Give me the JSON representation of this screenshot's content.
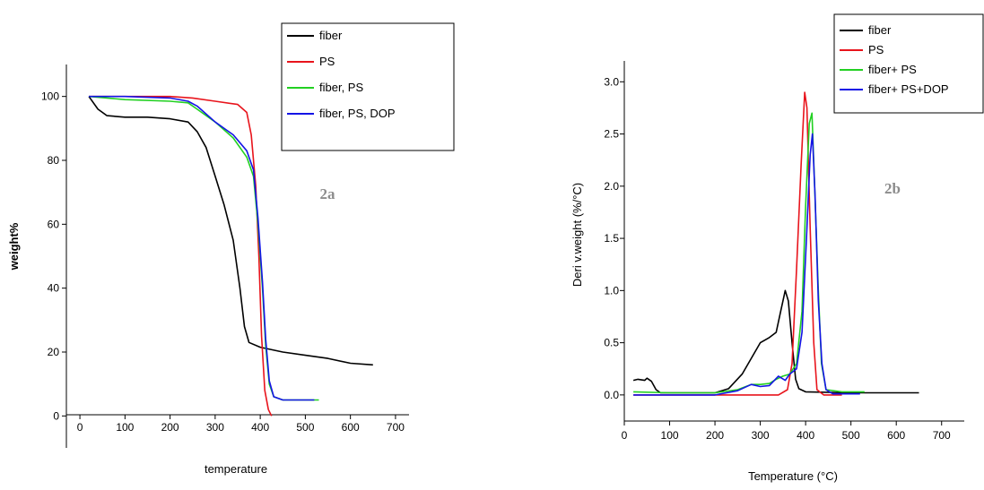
{
  "chart_data": [
    {
      "type": "line",
      "panel_label": "2a",
      "xlabel": "temperature",
      "ylabel": "weight%",
      "xlim": [
        -30,
        730
      ],
      "ylim": [
        -10,
        110
      ],
      "x_ticks": [
        0,
        100,
        200,
        300,
        400,
        500,
        600,
        700
      ],
      "y_ticks": [
        0,
        20,
        40,
        60,
        80,
        100
      ],
      "legend_position": "top-right",
      "series": [
        {
          "name": "fiber",
          "color": "#000000",
          "points": [
            [
              20,
              100
            ],
            [
              40,
              96
            ],
            [
              60,
              94
            ],
            [
              100,
              93.5
            ],
            [
              150,
              93.5
            ],
            [
              200,
              93
            ],
            [
              240,
              92
            ],
            [
              260,
              89
            ],
            [
              280,
              84
            ],
            [
              300,
              75
            ],
            [
              320,
              66
            ],
            [
              340,
              55
            ],
            [
              355,
              40
            ],
            [
              365,
              28
            ],
            [
              375,
              23
            ],
            [
              400,
              21.5
            ],
            [
              450,
              20
            ],
            [
              500,
              19
            ],
            [
              550,
              18
            ],
            [
              600,
              16.5
            ],
            [
              650,
              16
            ]
          ]
        },
        {
          "name": "PS",
          "color": "#e8141c",
          "points": [
            [
              20,
              100
            ],
            [
              100,
              100
            ],
            [
              200,
              100
            ],
            [
              250,
              99.5
            ],
            [
              300,
              98.5
            ],
            [
              350,
              97.5
            ],
            [
              370,
              95
            ],
            [
              380,
              88
            ],
            [
              390,
              72
            ],
            [
              397,
              50
            ],
            [
              403,
              25
            ],
            [
              410,
              8
            ],
            [
              418,
              2
            ],
            [
              425,
              0
            ]
          ]
        },
        {
          "name": "fiber, PS",
          "color": "#22d022",
          "points": [
            [
              20,
              100
            ],
            [
              100,
              99
            ],
            [
              200,
              98.5
            ],
            [
              240,
              98
            ],
            [
              260,
              96
            ],
            [
              300,
              92
            ],
            [
              340,
              87
            ],
            [
              370,
              81
            ],
            [
              385,
              75
            ],
            [
              395,
              60
            ],
            [
              405,
              40
            ],
            [
              412,
              22
            ],
            [
              420,
              10
            ],
            [
              430,
              6
            ],
            [
              450,
              5
            ],
            [
              500,
              5
            ],
            [
              530,
              5
            ]
          ]
        },
        {
          "name": "fiber,  PS, DOP",
          "color": "#1414e6",
          "points": [
            [
              20,
              100
            ],
            [
              100,
              100
            ],
            [
              200,
              99.5
            ],
            [
              240,
              98.5
            ],
            [
              260,
              97
            ],
            [
              300,
              92
            ],
            [
              340,
              88
            ],
            [
              370,
              83
            ],
            [
              385,
              77
            ],
            [
              395,
              62
            ],
            [
              405,
              42
            ],
            [
              412,
              24
            ],
            [
              420,
              11
            ],
            [
              430,
              6
            ],
            [
              450,
              5
            ],
            [
              500,
              5
            ],
            [
              520,
              5
            ]
          ]
        }
      ]
    },
    {
      "type": "line",
      "panel_label": "2b",
      "xlabel": "Temperature (°C)",
      "ylabel": "Deri v.weight (%/°C)",
      "xlim": [
        0,
        750
      ],
      "ylim": [
        -0.25,
        3.2
      ],
      "x_ticks": [
        0,
        100,
        200,
        300,
        400,
        500,
        600,
        700
      ],
      "y_ticks": [
        0.0,
        0.5,
        1.0,
        1.5,
        2.0,
        2.5,
        3.0
      ],
      "y_tick_labels": [
        "0.0",
        "0.5",
        "1.0",
        "1.5",
        "2.0",
        "2.5",
        "3.0"
      ],
      "legend_position": "top-right",
      "series": [
        {
          "name": "fiber",
          "color": "#000000",
          "points": [
            [
              20,
              0.14
            ],
            [
              30,
              0.15
            ],
            [
              45,
              0.14
            ],
            [
              50,
              0.16
            ],
            [
              60,
              0.13
            ],
            [
              70,
              0.05
            ],
            [
              80,
              0.02
            ],
            [
              100,
              0.02
            ],
            [
              200,
              0.02
            ],
            [
              230,
              0.06
            ],
            [
              260,
              0.2
            ],
            [
              280,
              0.35
            ],
            [
              300,
              0.5
            ],
            [
              320,
              0.55
            ],
            [
              335,
              0.6
            ],
            [
              345,
              0.8
            ],
            [
              355,
              1.0
            ],
            [
              362,
              0.9
            ],
            [
              370,
              0.5
            ],
            [
              378,
              0.15
            ],
            [
              385,
              0.06
            ],
            [
              400,
              0.03
            ],
            [
              500,
              0.02
            ],
            [
              600,
              0.02
            ],
            [
              650,
              0.02
            ]
          ]
        },
        {
          "name": "PS",
          "color": "#e8141c",
          "points": [
            [
              20,
              0.0
            ],
            [
              100,
              0.0
            ],
            [
              200,
              0.0
            ],
            [
              300,
              0.0
            ],
            [
              340,
              0.0
            ],
            [
              360,
              0.05
            ],
            [
              370,
              0.3
            ],
            [
              380,
              1.2
            ],
            [
              390,
              2.2
            ],
            [
              398,
              2.9
            ],
            [
              403,
              2.75
            ],
            [
              410,
              1.6
            ],
            [
              418,
              0.5
            ],
            [
              425,
              0.05
            ],
            [
              440,
              0.0
            ],
            [
              480,
              0.0
            ]
          ]
        },
        {
          "name": "fiber+ PS",
          "color": "#22d022",
          "points": [
            [
              20,
              0.03
            ],
            [
              100,
              0.02
            ],
            [
              200,
              0.02
            ],
            [
              250,
              0.05
            ],
            [
              280,
              0.1
            ],
            [
              300,
              0.1
            ],
            [
              320,
              0.11
            ],
            [
              335,
              0.15
            ],
            [
              350,
              0.18
            ],
            [
              365,
              0.2
            ],
            [
              380,
              0.3
            ],
            [
              392,
              0.8
            ],
            [
              400,
              1.8
            ],
            [
              408,
              2.6
            ],
            [
              414,
              2.7
            ],
            [
              420,
              2.0
            ],
            [
              428,
              1.0
            ],
            [
              435,
              0.3
            ],
            [
              445,
              0.05
            ],
            [
              480,
              0.03
            ],
            [
              530,
              0.03
            ]
          ]
        },
        {
          "name": "fiber+ PS+DOP",
          "color": "#1414e6",
          "points": [
            [
              20,
              0.0
            ],
            [
              100,
              0.0
            ],
            [
              200,
              0.0
            ],
            [
              250,
              0.04
            ],
            [
              280,
              0.1
            ],
            [
              300,
              0.08
            ],
            [
              320,
              0.09
            ],
            [
              340,
              0.18
            ],
            [
              355,
              0.14
            ],
            [
              365,
              0.2
            ],
            [
              380,
              0.25
            ],
            [
              392,
              0.6
            ],
            [
              402,
              1.5
            ],
            [
              410,
              2.3
            ],
            [
              415,
              2.5
            ],
            [
              421,
              1.9
            ],
            [
              428,
              0.9
            ],
            [
              436,
              0.3
            ],
            [
              445,
              0.05
            ],
            [
              460,
              0.01
            ],
            [
              520,
              0.01
            ]
          ]
        }
      ]
    }
  ]
}
